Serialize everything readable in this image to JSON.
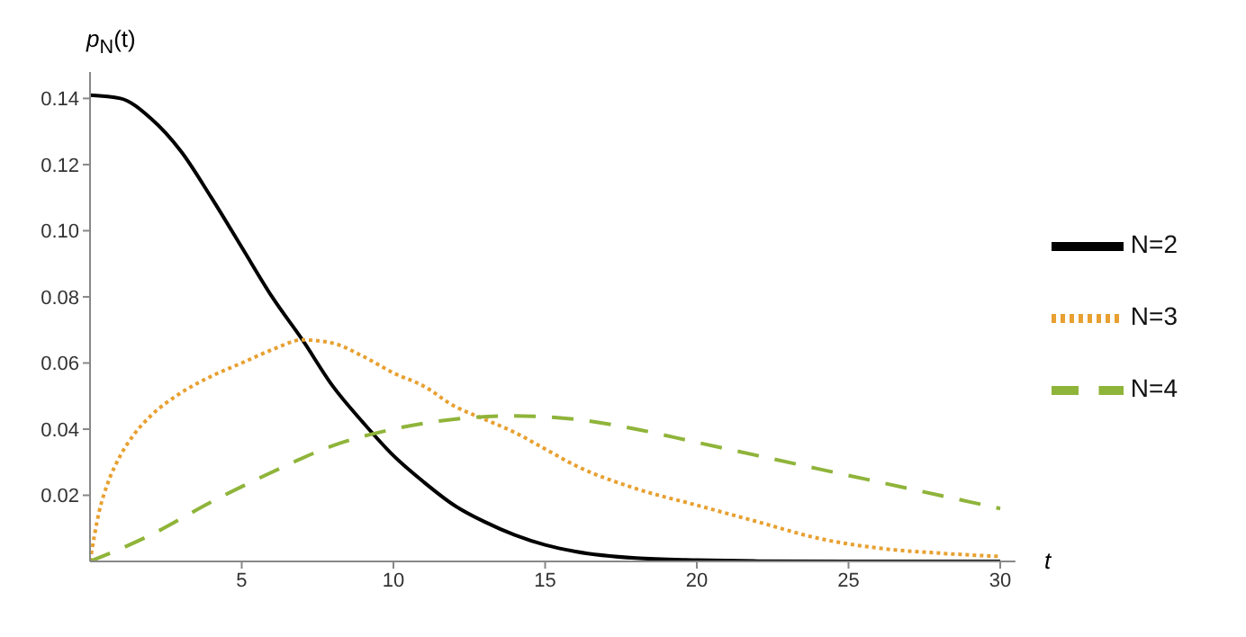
{
  "chart_data": {
    "type": "line",
    "xlabel": "t",
    "ylabel": "p$_{N}$(t)",
    "xlim": [
      0,
      30.5
    ],
    "ylim": [
      0,
      0.148
    ],
    "xticks": [
      5,
      10,
      15,
      20,
      25,
      30
    ],
    "yticks": [
      0.02,
      0.04,
      0.06,
      0.08,
      {
        "value": 0.1,
        "label": "0.10"
      },
      0.12,
      0.14
    ],
    "grid": false,
    "legend": "right",
    "marker": "none",
    "series": [
      {
        "name": "N=2",
        "color": "#000000",
        "line_style": "solid",
        "x": [
          0,
          1,
          2,
          3,
          4,
          5,
          6,
          7,
          8,
          9,
          10,
          11,
          12,
          13,
          14,
          15,
          16,
          18,
          20,
          22,
          25,
          30
        ],
        "values": [
          0.141,
          0.14,
          0.134,
          0.124,
          0.11,
          0.095,
          0.08,
          0.067,
          0.053,
          0.042,
          0.032,
          0.024,
          0.017,
          0.012,
          0.008,
          0.005,
          0.003,
          0.001,
          0.0004,
          0.0001,
          0,
          0
        ]
      },
      {
        "name": "N=3",
        "color": "#e8a030",
        "line_style": "dotted",
        "x": [
          0,
          0.3,
          0.6,
          1,
          1.5,
          2,
          3,
          4,
          5,
          6,
          7,
          8,
          9,
          10,
          11,
          12,
          13,
          14,
          15,
          16,
          18,
          20,
          22,
          24,
          26,
          28,
          30
        ],
        "values": [
          0,
          0.015,
          0.024,
          0.032,
          0.039,
          0.044,
          0.051,
          0.056,
          0.06,
          0.064,
          0.067,
          0.066,
          0.062,
          0.057,
          0.053,
          0.047,
          0.043,
          0.039,
          0.034,
          0.029,
          0.022,
          0.017,
          0.012,
          0.007,
          0.004,
          0.0025,
          0.0015
        ]
      },
      {
        "name": "N=4",
        "color": "#8fb43a",
        "line_style": "dashed",
        "x": [
          0,
          2,
          4,
          6,
          8,
          10,
          12,
          14,
          16,
          18,
          20,
          22,
          24,
          26,
          28,
          30
        ],
        "values": [
          0,
          0.008,
          0.018,
          0.027,
          0.035,
          0.04,
          0.043,
          0.044,
          0.043,
          0.04,
          0.036,
          0.032,
          0.028,
          0.024,
          0.02,
          0.016
        ]
      }
    ]
  }
}
